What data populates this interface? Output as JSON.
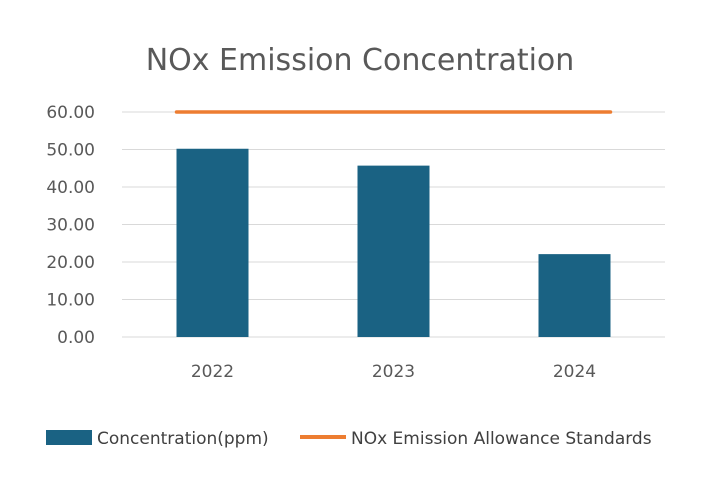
{
  "chart_data": {
    "type": "bar",
    "title": "NOx Emission Concentration",
    "categories": [
      "2022",
      "2023",
      "2024"
    ],
    "series": [
      {
        "name": "Concentration(ppm)",
        "type": "bar",
        "values": [
          50.2,
          45.7,
          22.1
        ]
      },
      {
        "name": "NOx Emission Allowance Standards",
        "type": "line",
        "values": [
          60,
          60,
          60
        ]
      }
    ],
    "y_ticks": [
      "0.00",
      "10.00",
      "20.00",
      "30.00",
      "40.00",
      "50.00",
      "60.00"
    ],
    "ylim": [
      0,
      60
    ],
    "grid": true,
    "legend_position": "bottom",
    "colors": {
      "bar": "#1a6283",
      "line": "#ed7d31"
    }
  }
}
